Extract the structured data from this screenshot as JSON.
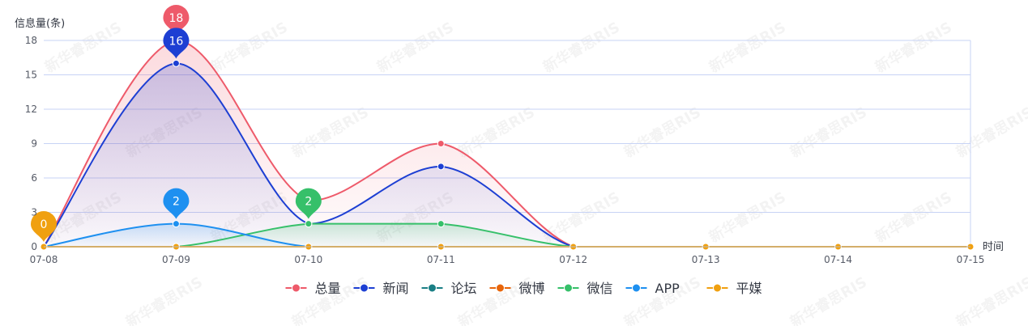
{
  "chart_data": {
    "type": "line",
    "title": "",
    "ylabel": "信息量(条)",
    "xlabel": "时间",
    "ylim": [
      0,
      18
    ],
    "yticks": [
      0,
      3,
      6,
      9,
      12,
      15,
      18
    ],
    "categories": [
      "07-08",
      "07-09",
      "07-10",
      "07-11",
      "07-12",
      "07-13",
      "07-14",
      "07-15"
    ],
    "grid": true,
    "legend_position": "bottom",
    "series": [
      {
        "name": "总量",
        "color": "#ee5a6a",
        "values": [
          0,
          18,
          4,
          9,
          0,
          0,
          0,
          0
        ],
        "area": true,
        "max_label": "18"
      },
      {
        "name": "新闻",
        "color": "#1d3fd3",
        "values": [
          0,
          16,
          2,
          7,
          0,
          0,
          0,
          0
        ],
        "area": true,
        "max_label": "16"
      },
      {
        "name": "论坛",
        "color": "#1a7f85",
        "values": [
          0,
          0,
          0,
          0,
          0,
          0,
          0,
          0
        ],
        "area": false
      },
      {
        "name": "微博",
        "color": "#e8650a",
        "values": [
          0,
          0,
          0,
          0,
          0,
          0,
          0,
          0
        ],
        "area": false
      },
      {
        "name": "微信",
        "color": "#36c06a",
        "values": [
          0,
          0,
          2,
          2,
          0,
          0,
          0,
          0
        ],
        "area": true,
        "max_label": "2"
      },
      {
        "name": "APP",
        "color": "#1e90f0",
        "values": [
          0,
          2,
          0,
          0,
          0,
          0,
          0,
          0
        ],
        "area": true,
        "max_label": "2"
      },
      {
        "name": "平媒",
        "color": "#f0a010",
        "values": [
          0,
          0,
          0,
          0,
          0,
          0,
          0,
          0
        ],
        "area": false,
        "max_label": "0"
      }
    ]
  },
  "watermark": {
    "text": "新华睿思RIS"
  }
}
